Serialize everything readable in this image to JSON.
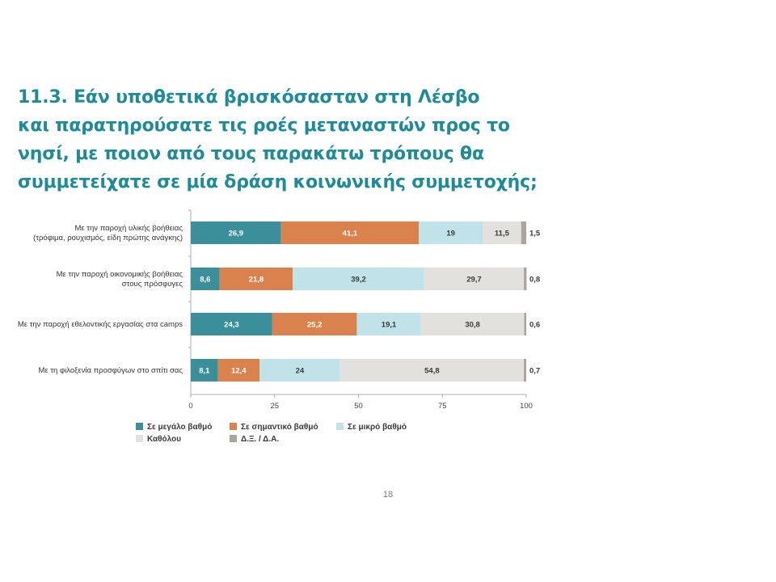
{
  "title_lines": [
    "11.3. Εάν υποθετικά βρισκόσασταν στη Λέσβο",
    "και παρατηρούσατε τις ροές μεταναστών προς το",
    "νησί, με ποιον από τους παρακάτω τρόπους θα",
    "συμμετείχατε σε μία δράση κοινωνικής συμμετοχής;"
  ],
  "page_number": "18",
  "chart_data": {
    "type": "bar",
    "orientation": "horizontal",
    "stacked": true,
    "categories": [
      [
        "Με την παροχή υλικής βοήθειας",
        "(τρόφιμα, ρουχισμός, είδη πρώτης ανάγκης)"
      ],
      [
        "Με την παροχή οικονομικής βοήθειας",
        "στους πρόσφυγες"
      ],
      [
        "Με την παροχή εθελοντικής εργασίας στα camps"
      ],
      [
        "Με τη φιλοξενία προσφύγων στο σπίτι σας"
      ]
    ],
    "series": [
      {
        "name": "Σε μεγάλο βαθμό",
        "color": "#3a8f9a",
        "label_color": "#ffffff",
        "values": [
          26.9,
          8.6,
          24.3,
          8.1
        ]
      },
      {
        "name": "Σε σημαντικό βαθμό",
        "color": "#d9824d",
        "label_color": "#ffffff",
        "values": [
          41.1,
          21.8,
          25.2,
          12.4
        ]
      },
      {
        "name": "Σε μικρό βαθμό",
        "color": "#bfe3e8",
        "label_color": "#3a3a3a",
        "values": [
          19,
          39.2,
          19.1,
          24
        ]
      },
      {
        "name": "Καθόλου",
        "color": "#e3e1dd",
        "label_color": "#3a3a3a",
        "values": [
          11.5,
          29.7,
          30.8,
          54.8
        ]
      },
      {
        "name": "Δ.Ξ. / Δ.Α.",
        "color": "#a9a49c",
        "label_color": "#3a3a3a",
        "values": [
          1.5,
          0.8,
          0.6,
          0.7
        ]
      }
    ],
    "value_labels": [
      [
        "26,9",
        "41,1",
        "19",
        "11,5",
        "1,5"
      ],
      [
        "8,6",
        "21,8",
        "39,2",
        "29,7",
        "0,8"
      ],
      [
        "24,3",
        "25,2",
        "19,1",
        "30,8",
        "0,6"
      ],
      [
        "8,1",
        "12,4",
        "24",
        "54,8",
        "0,7"
      ]
    ],
    "xlim": [
      0,
      100
    ],
    "xticks": [
      "0",
      "25",
      "50",
      "75",
      "100"
    ],
    "legend": {
      "position": "bottom",
      "rows": [
        [
          "Σε μεγάλο βαθμό",
          "Σε σημαντικό βαθμό",
          "Σε μικρό βαθμό"
        ],
        [
          "Καθόλου",
          "Δ.Ξ. / Δ.Α."
        ]
      ]
    }
  }
}
